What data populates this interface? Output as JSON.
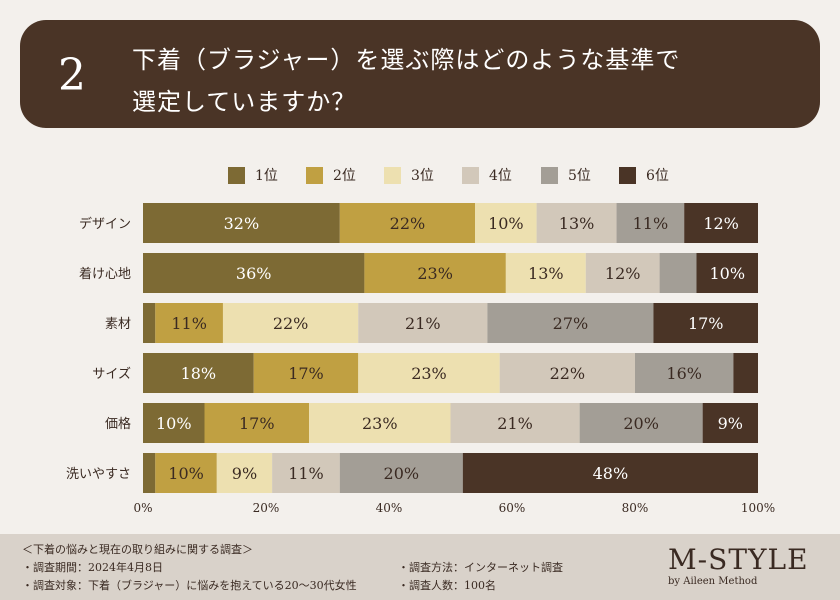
{
  "header": {
    "number": "2",
    "question_line1": "下着（ブラジャー）を選ぶ際はどのような基準で",
    "question_line2": "選定していますか？"
  },
  "colors": {
    "rank1": "#7d6a34",
    "rank2": "#c0a042",
    "rank3": "#ede0b0",
    "rank4": "#d2c8ba",
    "rank5": "#a39e96",
    "rank6": "#4a3426"
  },
  "chart_data": {
    "type": "bar",
    "orientation": "horizontal",
    "stacked": true,
    "categories": [
      "デザイン",
      "着け心地",
      "素材",
      "サイズ",
      "価格",
      "洗いやすさ"
    ],
    "series": [
      {
        "name": "1位",
        "values": [
          32,
          36,
          2,
          18,
          10,
          2
        ],
        "labels": [
          "32%",
          "36%",
          "",
          "18%",
          "10%",
          ""
        ]
      },
      {
        "name": "2位",
        "values": [
          22,
          23,
          11,
          17,
          17,
          10
        ],
        "labels": [
          "22%",
          "23%",
          "11%",
          "17%",
          "17%",
          "10%"
        ]
      },
      {
        "name": "3位",
        "values": [
          10,
          13,
          22,
          23,
          23,
          9
        ],
        "labels": [
          "10%",
          "13%",
          "22%",
          "23%",
          "23%",
          "9%"
        ]
      },
      {
        "name": "4位",
        "values": [
          13,
          12,
          21,
          22,
          21,
          11
        ],
        "labels": [
          "13%",
          "12%",
          "21%",
          "22%",
          "21%",
          "11%"
        ]
      },
      {
        "name": "5位",
        "values": [
          11,
          6,
          27,
          16,
          20,
          20
        ],
        "labels": [
          "11%",
          "",
          "27%",
          "16%",
          "20%",
          "20%"
        ]
      },
      {
        "name": "6位",
        "values": [
          12,
          10,
          17,
          4,
          9,
          48
        ],
        "labels": [
          "12%",
          "10%",
          "17%",
          "",
          "9%",
          "48%"
        ]
      }
    ],
    "xlim": [
      0,
      100
    ],
    "xticks": [
      "0%",
      "20%",
      "40%",
      "60%",
      "80%",
      "100%"
    ],
    "legend_position": "top"
  },
  "footer": {
    "survey_title": "＜下着の悩みと現在の取り組みに関する調査＞",
    "period": "・調査期間：2024年4月8日",
    "target": "・調査対象：下着（ブラジャー）に悩みを抱えている20～30代女性",
    "method": "・調査方法：インターネット調査",
    "respondents": "・調査人数：100名",
    "brand": "M-STYLE",
    "brand_sub": "by Aileen Method"
  }
}
